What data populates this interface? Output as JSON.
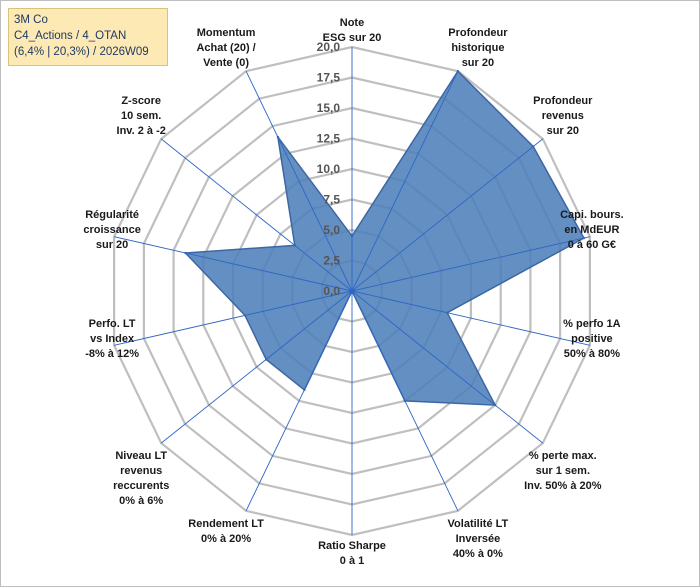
{
  "info": {
    "line1": "3M Co",
    "line2": "C4_Actions / 4_OTAN",
    "line3": "(6,4% | 20,3%) / 2026W09"
  },
  "colors": {
    "fill": "#4f7fbb",
    "stroke": "#3c67a3",
    "grid": "#bfbfbf",
    "spoke": "#2e67c4"
  },
  "chart_data": {
    "type": "radar",
    "title": "",
    "rmax": 20,
    "ticks": [
      "0,0",
      "2,5",
      "5,0",
      "7,5",
      "10,0",
      "12,5",
      "15,0",
      "17,5",
      "20,0"
    ],
    "tick_values": [
      0,
      2.5,
      5,
      7.5,
      10,
      12.5,
      15,
      17.5,
      20
    ],
    "categories": [
      [
        "Note",
        "ESG sur 20"
      ],
      [
        "Profondeur",
        "historique",
        "sur 20"
      ],
      [
        "Profondeur",
        "revenus",
        "sur 20"
      ],
      [
        "Capi. bours.",
        "en MdEUR",
        "0 à 60 G€"
      ],
      [
        "% perfo 1A",
        "positive",
        "50% à 80%"
      ],
      [
        "% perte max.",
        "sur 1 sem.",
        "Inv. 50% à 20%"
      ],
      [
        "Volatilité LT",
        "Inversée",
        "40% à 0%"
      ],
      [
        "Ratio Sharpe",
        "0 à 1"
      ],
      [
        "Rendement LT",
        "0% à 20%"
      ],
      [
        "Niveau LT",
        "revenus",
        "reccurents",
        "0% à 6%"
      ],
      [
        "Perfo. LT",
        "vs Index",
        "-8% à 12%"
      ],
      [
        "Régularité",
        "croissance",
        "sur 20"
      ],
      [
        "Z-score",
        "10 sem.",
        "Inv. 2 à -2"
      ],
      [
        "Momentum",
        "Achat (20) /",
        "Vente (0)"
      ]
    ],
    "series": [
      {
        "name": "3M Co",
        "values": [
          4.5,
          20.0,
          19.0,
          19.5,
          8.0,
          15.0,
          10.0,
          0.0,
          9.0,
          9.0,
          9.0,
          14.0,
          6.0,
          14.0
        ]
      }
    ]
  }
}
